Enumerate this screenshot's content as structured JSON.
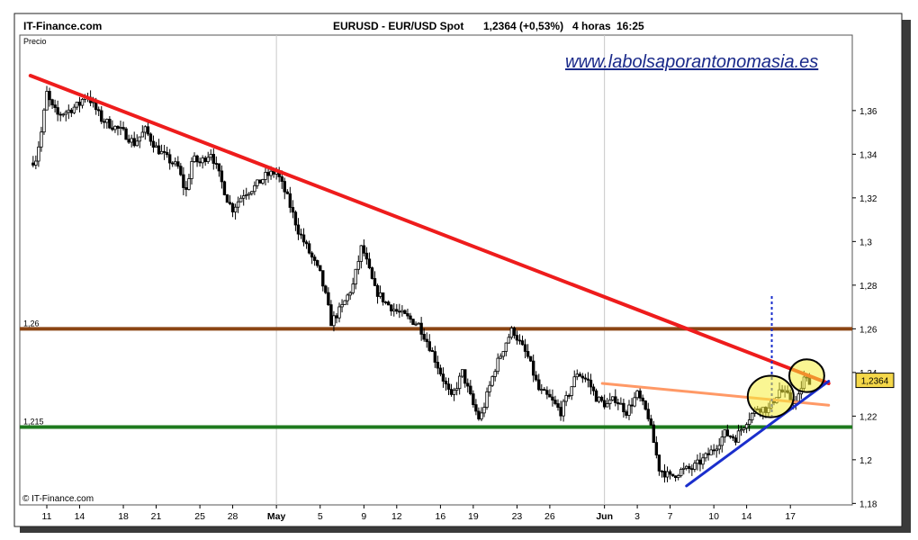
{
  "header": {
    "brand": "IT-Finance.com",
    "instrument": "EURUSD - EUR/USD Spot",
    "quote": "1,2364 (+0,53%)",
    "timeframe": "4 horas",
    "time": "16:25"
  },
  "panel_label": "Precio",
  "watermark": "www.labolsaporantonomasia.es",
  "copyright": "© IT-Finance.com",
  "colors": {
    "resistance_trend": "#ee1c1c",
    "horizontal_1_26": "#8b4513",
    "horizontal_1_215": "#1e7a1e",
    "orange_line": "#ff9966",
    "support_trend": "#1a2ecc",
    "highlight": "#f5ee3a",
    "price_box": "#f5d84a"
  },
  "chart_data": {
    "type": "candlestick",
    "title": "EURUSD - EUR/USD Spot",
    "ylim": [
      1.17,
      1.38
    ],
    "y_ticks": [
      {
        "value": 1.36,
        "label": "1,36"
      },
      {
        "value": 1.34,
        "label": "1,34"
      },
      {
        "value": 1.32,
        "label": "1,32"
      },
      {
        "value": 1.3,
        "label": "1,3"
      },
      {
        "value": 1.28,
        "label": "1,28"
      },
      {
        "value": 1.26,
        "label": "1,26"
      },
      {
        "value": 1.24,
        "label": "1,24"
      },
      {
        "value": 1.22,
        "label": "1,22"
      },
      {
        "value": 1.2,
        "label": "1,2"
      },
      {
        "value": 1.18,
        "label": "1,18"
      }
    ],
    "x_ticks": [
      {
        "day": 0,
        "label": "11"
      },
      {
        "day": 3,
        "label": "14"
      },
      {
        "day": 7,
        "label": "18"
      },
      {
        "day": 10,
        "label": "21"
      },
      {
        "day": 14,
        "label": "25"
      },
      {
        "day": 17,
        "label": "28"
      },
      {
        "day": 21,
        "label": "May",
        "major": true
      },
      {
        "day": 25,
        "label": "5"
      },
      {
        "day": 29,
        "label": "9"
      },
      {
        "day": 32,
        "label": "12"
      },
      {
        "day": 36,
        "label": "16"
      },
      {
        "day": 39,
        "label": "19"
      },
      {
        "day": 43,
        "label": "23"
      },
      {
        "day": 46,
        "label": "26"
      },
      {
        "day": 51,
        "label": "Jun",
        "major": true
      },
      {
        "day": 54,
        "label": "3"
      },
      {
        "day": 57,
        "label": "7"
      },
      {
        "day": 61,
        "label": "10"
      },
      {
        "day": 64,
        "label": "14"
      },
      {
        "day": 68,
        "label": "17"
      }
    ],
    "vertical_grid_days": [
      21,
      51
    ],
    "horizontal_lines": [
      {
        "value": 1.26,
        "label": "1,26",
        "color": "#8b4513"
      },
      {
        "value": 1.215,
        "label": "1,215",
        "color": "#1e7a1e"
      }
    ],
    "trendlines": [
      {
        "name": "resistance",
        "from": [
          -1.5,
          1.376
        ],
        "to": [
          71.5,
          1.235
        ],
        "color": "#ee1c1c"
      },
      {
        "name": "orange",
        "from": [
          50.8,
          1.235
        ],
        "to": [
          71.5,
          1.225
        ],
        "color": "#ff9966"
      },
      {
        "name": "support",
        "from": [
          58.5,
          1.188
        ],
        "to": [
          71.5,
          1.236
        ],
        "color": "#1a2ecc"
      }
    ],
    "vertical_dotted": {
      "day": 66.3,
      "from": 1.275,
      "to": 1.22
    },
    "ellipses": [
      {
        "cx": 66.2,
        "cy": 1.229,
        "rx": 2.1,
        "ry": 0.0095
      },
      {
        "cx": 69.5,
        "cy": 1.2385,
        "rx": 1.6,
        "ry": 0.0075
      }
    ],
    "last_price": {
      "value": 1.2364,
      "label": "1,2364"
    },
    "close_anchors": [
      [
        -1.5,
        1.336
      ],
      [
        -1.0,
        1.338
      ],
      [
        -0.5,
        1.35
      ],
      [
        0.0,
        1.368
      ],
      [
        0.4,
        1.362
      ],
      [
        1.0,
        1.358
      ],
      [
        2.0,
        1.36
      ],
      [
        3.0,
        1.363
      ],
      [
        3.6,
        1.368
      ],
      [
        4.2,
        1.363
      ],
      [
        5.0,
        1.356
      ],
      [
        6.0,
        1.353
      ],
      [
        7.0,
        1.35
      ],
      [
        8.0,
        1.345
      ],
      [
        9.0,
        1.351
      ],
      [
        10.0,
        1.343
      ],
      [
        11.0,
        1.338
      ],
      [
        12.0,
        1.334
      ],
      [
        12.7,
        1.322
      ],
      [
        13.3,
        1.338
      ],
      [
        14.0,
        1.336
      ],
      [
        15.0,
        1.341
      ],
      [
        16.0,
        1.327
      ],
      [
        16.6,
        1.318
      ],
      [
        17.0,
        1.315
      ],
      [
        18.0,
        1.322
      ],
      [
        19.0,
        1.325
      ],
      [
        20.0,
        1.33
      ],
      [
        21.0,
        1.332
      ],
      [
        22.0,
        1.32
      ],
      [
        23.0,
        1.305
      ],
      [
        24.0,
        1.295
      ],
      [
        25.0,
        1.285
      ],
      [
        25.6,
        1.273
      ],
      [
        26.0,
        1.263
      ],
      [
        27.0,
        1.27
      ],
      [
        28.0,
        1.28
      ],
      [
        28.8,
        1.298
      ],
      [
        29.4,
        1.288
      ],
      [
        30.0,
        1.278
      ],
      [
        31.0,
        1.272
      ],
      [
        32.0,
        1.268
      ],
      [
        33.0,
        1.265
      ],
      [
        34.0,
        1.262
      ],
      [
        35.0,
        1.252
      ],
      [
        36.0,
        1.24
      ],
      [
        37.0,
        1.228
      ],
      [
        38.0,
        1.24
      ],
      [
        39.0,
        1.225
      ],
      [
        39.6,
        1.218
      ],
      [
        40.4,
        1.232
      ],
      [
        41.0,
        1.242
      ],
      [
        42.0,
        1.254
      ],
      [
        42.6,
        1.26
      ],
      [
        43.3,
        1.253
      ],
      [
        44.0,
        1.247
      ],
      [
        45.0,
        1.232
      ],
      [
        46.0,
        1.228
      ],
      [
        47.0,
        1.222
      ],
      [
        47.7,
        1.23
      ],
      [
        48.5,
        1.24
      ],
      [
        49.5,
        1.236
      ],
      [
        50.3,
        1.228
      ],
      [
        51.2,
        1.225
      ],
      [
        52.0,
        1.228
      ],
      [
        53.0,
        1.222
      ],
      [
        54.0,
        1.23
      ],
      [
        55.0,
        1.22
      ],
      [
        55.5,
        1.208
      ],
      [
        56.0,
        1.196
      ],
      [
        57.0,
        1.192
      ],
      [
        58.0,
        1.195
      ],
      [
        59.0,
        1.196
      ],
      [
        60.0,
        1.2
      ],
      [
        61.0,
        1.205
      ],
      [
        62.0,
        1.212
      ],
      [
        63.0,
        1.21
      ],
      [
        64.0,
        1.218
      ],
      [
        65.0,
        1.224
      ],
      [
        66.0,
        1.223
      ],
      [
        67.0,
        1.232
      ],
      [
        68.0,
        1.228
      ],
      [
        68.6,
        1.226
      ],
      [
        69.2,
        1.237
      ],
      [
        69.8,
        1.2364
      ]
    ]
  }
}
